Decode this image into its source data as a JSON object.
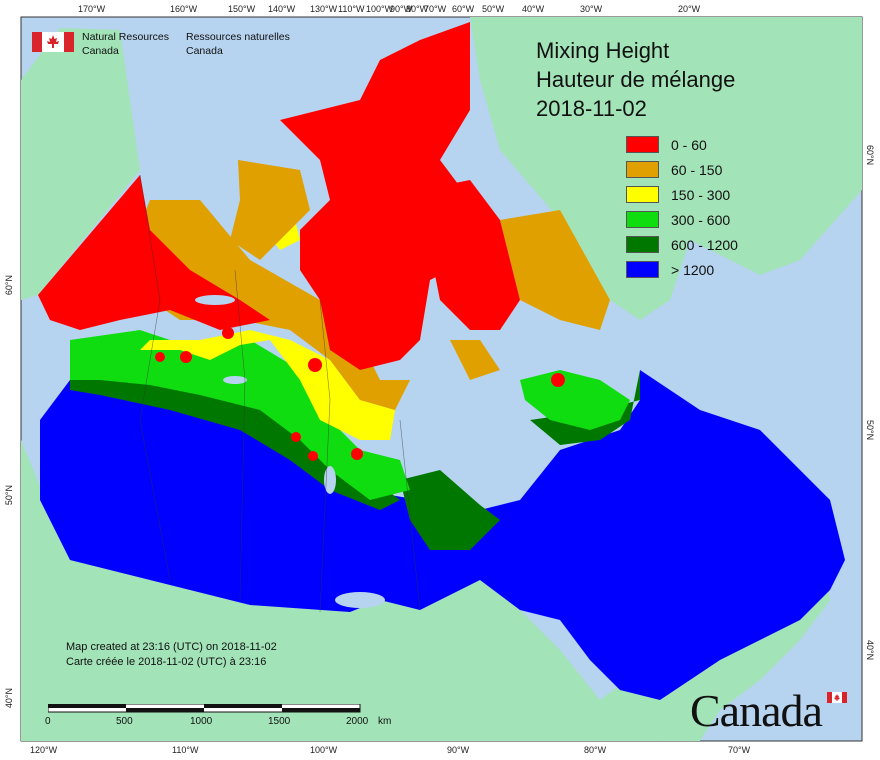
{
  "agency": {
    "name_en_line1": "Natural Resources",
    "name_en_line2": "Canada",
    "name_fr_line1": "Ressources naturelles",
    "name_fr_line2": "Canada"
  },
  "title": {
    "line1": "Mixing Height",
    "line2": "Hauteur de mélange",
    "date": "2018-11-02"
  },
  "legend": [
    {
      "label": "0 - 60",
      "color": "#ff0000"
    },
    {
      "label": "60 - 150",
      "color": "#dfa000"
    },
    {
      "label": "150 - 300",
      "color": "#ffff00"
    },
    {
      "label": "300 - 600",
      "color": "#10dd10"
    },
    {
      "label": "600 - 1200",
      "color": "#007800"
    },
    {
      "label": "> 1200",
      "color": "#0000ff"
    }
  ],
  "top_longitudes": [
    "170°W",
    "160°W",
    "150°W",
    "140°W",
    "130°W",
    "110°W",
    "100°W",
    "90°W",
    "80°W",
    "70°W",
    "60°W",
    "50°W",
    "40°W",
    "30°W",
    "20°W"
  ],
  "bottom_longitudes": [
    "120°W",
    "110°W",
    "100°W",
    "90°W",
    "80°W",
    "70°W"
  ],
  "left_latitudes": [
    "60°N",
    "50°N",
    "40°N"
  ],
  "right_latitudes": [
    "60°N",
    "50°N",
    "40°N"
  ],
  "credits": {
    "line_en": "Map created at 23:16 (UTC) on 2018-11-02",
    "line_fr": "Carte créée le 2018-11-02 (UTC) à 23:16"
  },
  "scale": {
    "ticks": [
      "0",
      "500",
      "1000",
      "1500",
      "2000"
    ],
    "unit": "km"
  },
  "wordmark": "Canada",
  "colors": {
    "ocean": "#b6d3ef",
    "land_other": "#a3e3b8",
    "flag_red": "#d8242a"
  }
}
